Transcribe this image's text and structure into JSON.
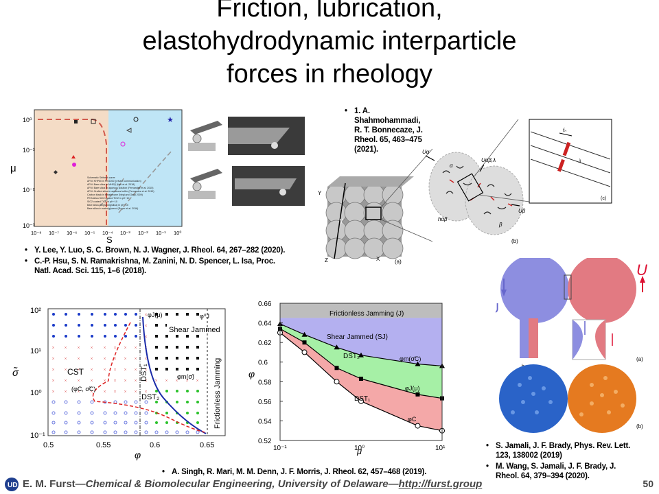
{
  "slide": {
    "title_lines": [
      "Friction, lubrication,",
      "elastohydrodynamic interparticle",
      "forces in rheology"
    ],
    "footer": {
      "author": "E. M. Furst",
      "affiliation": "Chemical & Biomolecular Engineering, University of Delaware",
      "url": "http://furst.group",
      "page_number": "50"
    }
  },
  "refs_left": [
    "Y. Lee, Y. Luo, S. C. Brown, N. J. Wagner, J. Rheol. 64, 267–282 (2020).",
    "C.-P. Hsu, S. N. Ramakrishna, M. Zanini, N. D. Spencer, L. Isa, Proc. Natl. Acad. Sci. 115, 1–6 (2018)."
  ],
  "ref_top_right": "1. A. Shahmohammadi, R. T. Bonnecaze, J. Rheol. 65, 463–475 (2021).",
  "refs_bottom_right": [
    "S. Jamali, J. F. Brady, Phys. Rev. Lett. 123, 138002 (2019)",
    "M. Wang, S. Jamali, J. F. Brady, J. Rheol. 64, 379–394 (2020)."
  ],
  "ref_bottom_center": "A. Singh, R. Mari, M. M. Denn, J. F. Morris, J. Rheol. 62, 457–468 (2019).",
  "fig_mu_s": {
    "ylabel": "μ",
    "xlabel": "S",
    "yticks": [
      "10⁰",
      "10⁻¹",
      "10⁻²",
      "10⁻³"
    ],
    "xticks": [
      "10⁻⁸",
      "10⁻⁷",
      "10⁻⁶",
      "10⁻⁵",
      "10⁻⁴",
      "10⁻³",
      "10⁻²",
      "10⁻¹",
      "10⁰"
    ],
    "legend": [
      "Schematic Stribeck curve",
      "AFM: KHP50 in PEG200 (private communication)",
      "AFM: Bare silica in MHSQ (Hsu et al. 2018)",
      "AFM: Bare silica in aqueous solution (Fernandez et al. 2015)",
      "AFM: Grafted silica in aqueous buffer (Fernandez et al. 2015)",
      "Carbon black in tetradecane (Negi and Osuji 2009)",
      "PEG/silica SiO2 coated TiO2 in pH~10",
      "SiO2 coated TiO2 in pH~10",
      "Bare silica (Angstrongsilica) in pH~10",
      "Bare silica in water/glycerol (Royer et al. 2016)"
    ]
  },
  "fig_shahmohammadi": {
    "labels": [
      "Uα",
      "Uαβ,λ",
      "Uβ",
      "hαβ",
      "α",
      "β",
      "Y",
      "X",
      "Z",
      "γ̇",
      "(a)",
      "(b)",
      "(c)",
      "fₙ",
      "λ"
    ]
  },
  "fig_jamali": {
    "labels": [
      "U",
      "-U",
      "(a)",
      "(b)",
      "h"
    ]
  },
  "fig_phase": {
    "ylabel": "σ̃",
    "xlabel": "φ",
    "xticks": [
      "0.5",
      "0.55",
      "0.6",
      "0.65"
    ],
    "yticks": [
      "10²",
      "10¹",
      "10⁰",
      "10⁻¹"
    ],
    "labels": {
      "shear_jammed": "Shear Jammed",
      "cst": "CST",
      "dst1": "DST₁",
      "dst2": "DST₂",
      "frictionless": "Frictionless Jamming",
      "phiJ0": "φ⁰J",
      "phiJmu": "φJ(μ)",
      "phim": "φm(σ̃)",
      "phiC": "(φC, σ̃C)"
    }
  },
  "chart_data": {
    "type": "line",
    "xlabel": "μ",
    "ylabel": "φ",
    "xscale": "log",
    "xlim": [
      0.1,
      10
    ],
    "ylim": [
      0.52,
      0.66
    ],
    "xticks": [
      "10⁻¹",
      "10⁰",
      "10¹"
    ],
    "yticks": [
      "0.52",
      "0.54",
      "0.56",
      "0.58",
      "0.6",
      "0.62",
      "0.64",
      "0.66"
    ],
    "x": [
      0.1,
      0.2,
      0.5,
      1,
      5,
      10
    ],
    "series": [
      {
        "name": "φm(σ̃C)",
        "values": [
          0.639,
          0.628,
          0.615,
          0.607,
          0.598,
          0.596
        ]
      },
      {
        "name": "φJ(μ)",
        "values": [
          0.634,
          0.62,
          0.594,
          0.583,
          0.567,
          0.563
        ]
      },
      {
        "name": "φC",
        "values": [
          0.63,
          0.61,
          0.58,
          0.56,
          0.535,
          0.53
        ]
      }
    ],
    "regions": {
      "top": "Frictionless Jamming (J)",
      "sj": "Shear Jammed (SJ)",
      "dst2": "DST₂",
      "dst1": "DST₁"
    },
    "colors": {
      "sj": "#b4b0f0",
      "dst2": "#a6f0a6",
      "dst1": "#f4a8a8",
      "top": "#bdbdbd"
    }
  }
}
